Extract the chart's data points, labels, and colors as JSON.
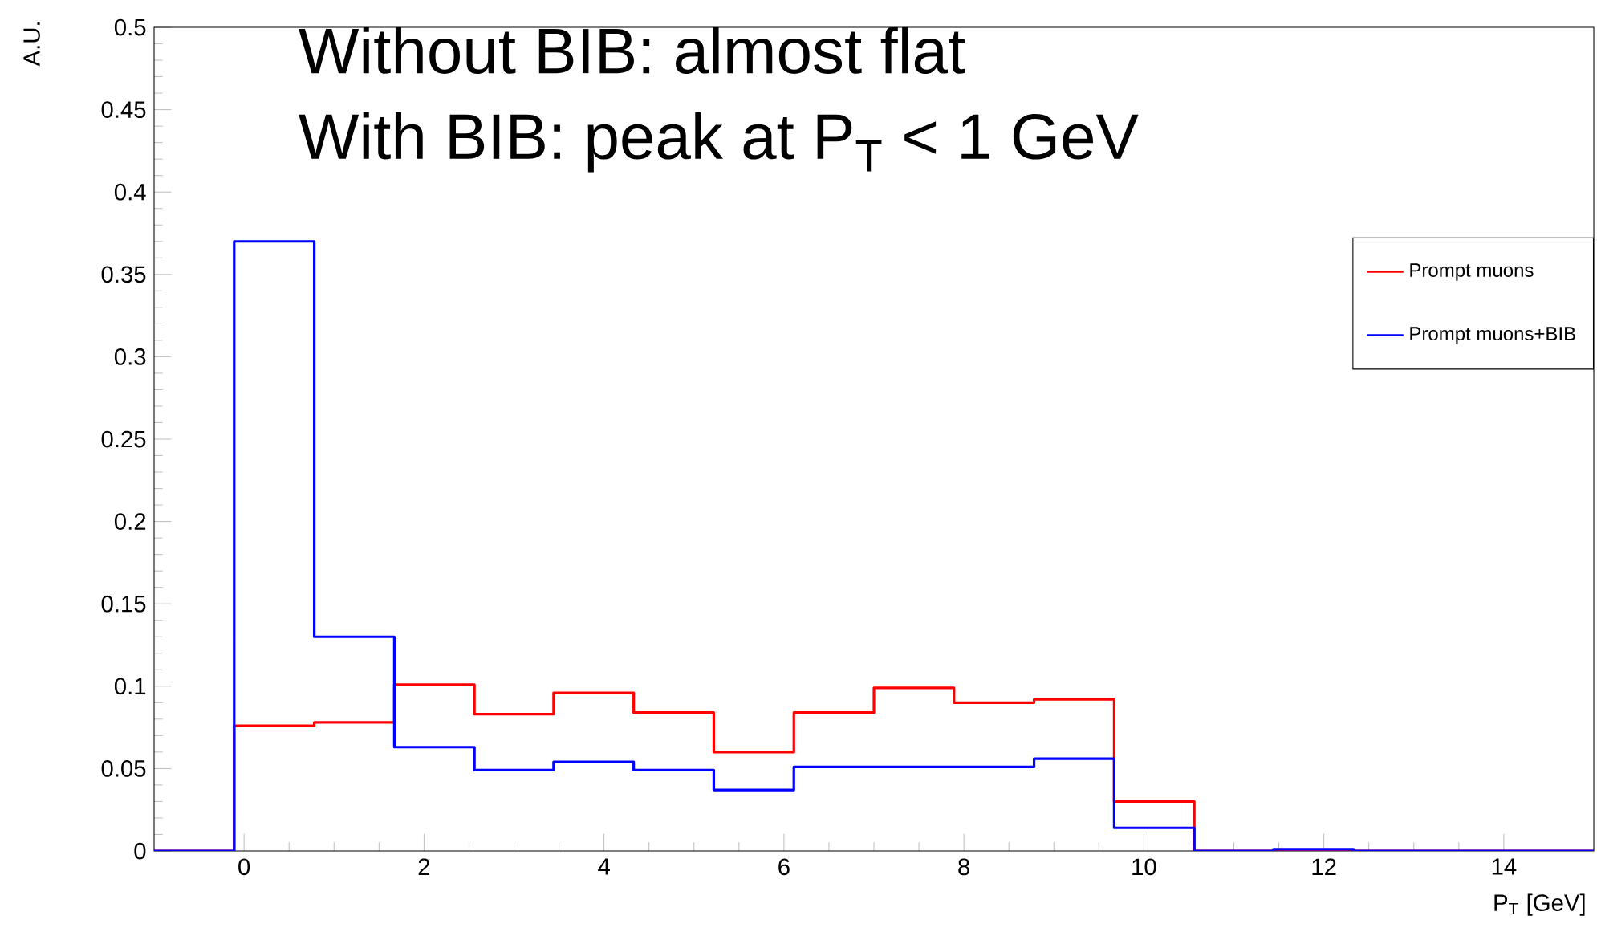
{
  "chart_data": {
    "type": "histogram",
    "xlabel": "P$_{T}$ [GeV]",
    "ylabel": "A.U.",
    "annotations": [
      "Without BIB: almost flat",
      "With BIB: peak at P$_{T}$ < 1 GeV"
    ],
    "bins": [
      -1,
      -0.11,
      0.78,
      1.67,
      2.56,
      3.44,
      4.33,
      5.22,
      6.11,
      7,
      7.89,
      8.78,
      9.67,
      10.56,
      11.44,
      12.33,
      13.22,
      14.11,
      15
    ],
    "series": [
      {
        "name": "Prompt muons",
        "color": "#ff0000",
        "values": [
          0,
          0.076,
          0.078,
          0.101,
          0.083,
          0.096,
          0.084,
          0.06,
          0.084,
          0.099,
          0.09,
          0.092,
          0.03,
          0,
          0,
          0,
          0,
          0
        ]
      },
      {
        "name": "Prompt muons+BIB",
        "color": "#0000ff",
        "values": [
          0,
          0.37,
          0.13,
          0.063,
          0.049,
          0.054,
          0.049,
          0.037,
          0.051,
          0.051,
          0.051,
          0.056,
          0.014,
          0,
          0.001,
          0,
          0,
          0
        ]
      }
    ],
    "xlim": [
      -1,
      15
    ],
    "ylim": [
      0,
      0.5
    ],
    "xticks": [
      0,
      2,
      4,
      6,
      8,
      10,
      12,
      14
    ],
    "yticks": [
      0,
      0.05,
      0.1,
      0.15,
      0.2,
      0.25,
      0.3,
      0.35,
      0.4,
      0.45,
      0.5
    ],
    "grid": false,
    "legend": "top right"
  }
}
